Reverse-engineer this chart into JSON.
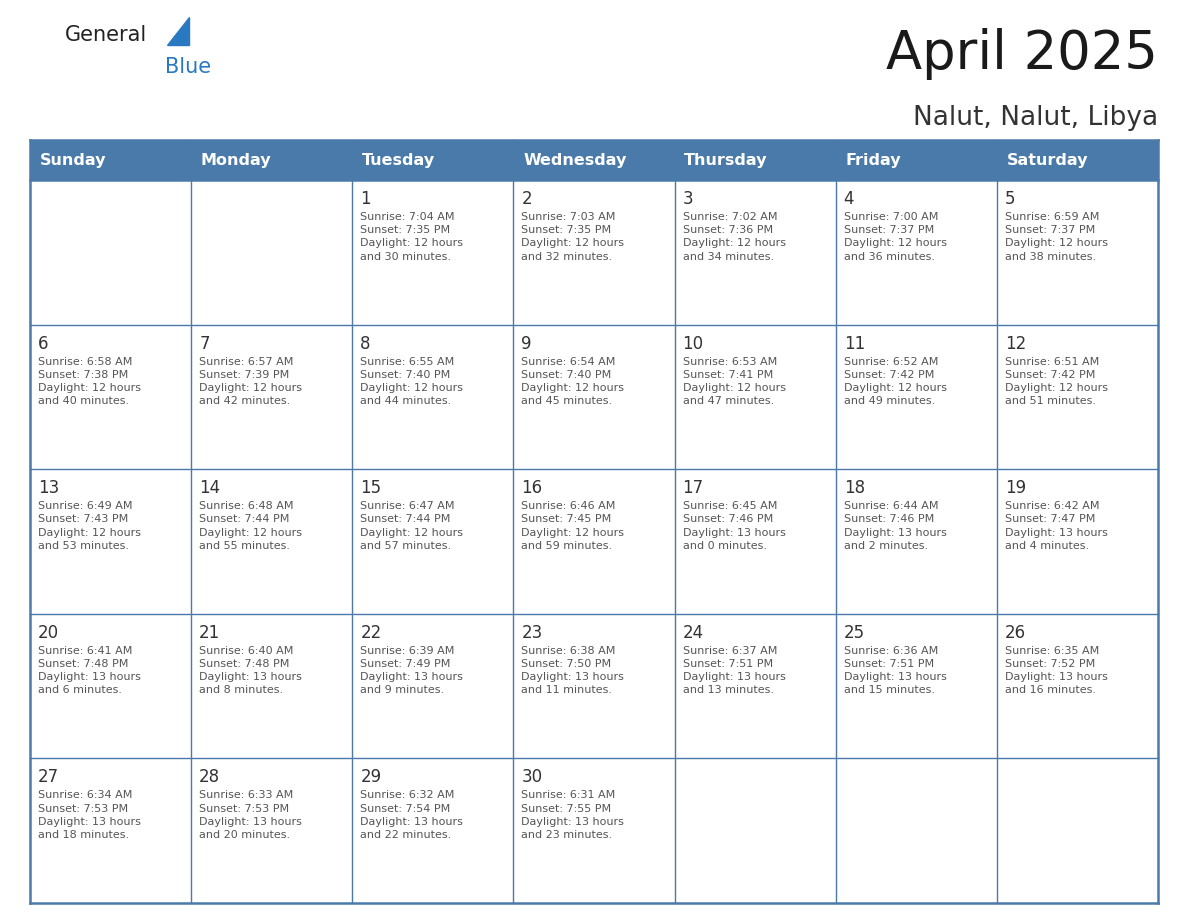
{
  "title": "April 2025",
  "subtitle": "Nalut, Nalut, Libya",
  "header_color": "#4a7aaa",
  "header_text_color": "#FFFFFF",
  "background_color": "#FFFFFF",
  "border_color": "#4a7aaa",
  "text_color_dark": "#333333",
  "text_color_body": "#555555",
  "days_of_week": [
    "Sunday",
    "Monday",
    "Tuesday",
    "Wednesday",
    "Thursday",
    "Friday",
    "Saturday"
  ],
  "cell_data": [
    [
      "",
      "",
      "1\nSunrise: 7:04 AM\nSunset: 7:35 PM\nDaylight: 12 hours\nand 30 minutes.",
      "2\nSunrise: 7:03 AM\nSunset: 7:35 PM\nDaylight: 12 hours\nand 32 minutes.",
      "3\nSunrise: 7:02 AM\nSunset: 7:36 PM\nDaylight: 12 hours\nand 34 minutes.",
      "4\nSunrise: 7:00 AM\nSunset: 7:37 PM\nDaylight: 12 hours\nand 36 minutes.",
      "5\nSunrise: 6:59 AM\nSunset: 7:37 PM\nDaylight: 12 hours\nand 38 minutes."
    ],
    [
      "6\nSunrise: 6:58 AM\nSunset: 7:38 PM\nDaylight: 12 hours\nand 40 minutes.",
      "7\nSunrise: 6:57 AM\nSunset: 7:39 PM\nDaylight: 12 hours\nand 42 minutes.",
      "8\nSunrise: 6:55 AM\nSunset: 7:40 PM\nDaylight: 12 hours\nand 44 minutes.",
      "9\nSunrise: 6:54 AM\nSunset: 7:40 PM\nDaylight: 12 hours\nand 45 minutes.",
      "10\nSunrise: 6:53 AM\nSunset: 7:41 PM\nDaylight: 12 hours\nand 47 minutes.",
      "11\nSunrise: 6:52 AM\nSunset: 7:42 PM\nDaylight: 12 hours\nand 49 minutes.",
      "12\nSunrise: 6:51 AM\nSunset: 7:42 PM\nDaylight: 12 hours\nand 51 minutes."
    ],
    [
      "13\nSunrise: 6:49 AM\nSunset: 7:43 PM\nDaylight: 12 hours\nand 53 minutes.",
      "14\nSunrise: 6:48 AM\nSunset: 7:44 PM\nDaylight: 12 hours\nand 55 minutes.",
      "15\nSunrise: 6:47 AM\nSunset: 7:44 PM\nDaylight: 12 hours\nand 57 minutes.",
      "16\nSunrise: 6:46 AM\nSunset: 7:45 PM\nDaylight: 12 hours\nand 59 minutes.",
      "17\nSunrise: 6:45 AM\nSunset: 7:46 PM\nDaylight: 13 hours\nand 0 minutes.",
      "18\nSunrise: 6:44 AM\nSunset: 7:46 PM\nDaylight: 13 hours\nand 2 minutes.",
      "19\nSunrise: 6:42 AM\nSunset: 7:47 PM\nDaylight: 13 hours\nand 4 minutes."
    ],
    [
      "20\nSunrise: 6:41 AM\nSunset: 7:48 PM\nDaylight: 13 hours\nand 6 minutes.",
      "21\nSunrise: 6:40 AM\nSunset: 7:48 PM\nDaylight: 13 hours\nand 8 minutes.",
      "22\nSunrise: 6:39 AM\nSunset: 7:49 PM\nDaylight: 13 hours\nand 9 minutes.",
      "23\nSunrise: 6:38 AM\nSunset: 7:50 PM\nDaylight: 13 hours\nand 11 minutes.",
      "24\nSunrise: 6:37 AM\nSunset: 7:51 PM\nDaylight: 13 hours\nand 13 minutes.",
      "25\nSunrise: 6:36 AM\nSunset: 7:51 PM\nDaylight: 13 hours\nand 15 minutes.",
      "26\nSunrise: 6:35 AM\nSunset: 7:52 PM\nDaylight: 13 hours\nand 16 minutes."
    ],
    [
      "27\nSunrise: 6:34 AM\nSunset: 7:53 PM\nDaylight: 13 hours\nand 18 minutes.",
      "28\nSunrise: 6:33 AM\nSunset: 7:53 PM\nDaylight: 13 hours\nand 20 minutes.",
      "29\nSunrise: 6:32 AM\nSunset: 7:54 PM\nDaylight: 13 hours\nand 22 minutes.",
      "30\nSunrise: 6:31 AM\nSunset: 7:55 PM\nDaylight: 13 hours\nand 23 minutes.",
      "",
      "",
      ""
    ]
  ],
  "logo_general_color": "#222222",
  "logo_blue_color": "#2979C2",
  "logo_triangle_color": "#2979C2",
  "fig_width": 11.88,
  "fig_height": 9.18,
  "dpi": 100
}
